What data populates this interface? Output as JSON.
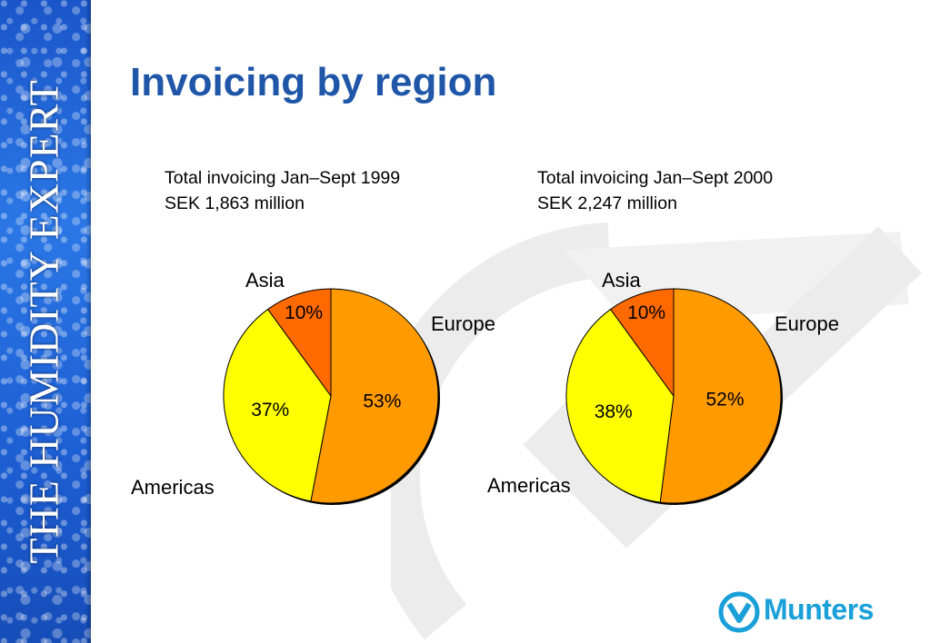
{
  "sidebar": {
    "brand_text": "THE HUMIDITY EXPERT"
  },
  "slide": {
    "title": "Invoicing by region"
  },
  "logo": {
    "text": "Munters",
    "color": "#1aa0d8"
  },
  "colors": {
    "title": "#1f56a7",
    "europe": "#ff9a00",
    "americas": "#ffff00",
    "asia": "#ff6a00"
  },
  "chart_data": [
    {
      "type": "pie",
      "title_line1": "Total invoicing Jan–Sept 1999",
      "title_line2": "SEK 1,863 million",
      "slices": [
        {
          "label": "Europe",
          "value": 53,
          "value_label": "53%",
          "color": "#ff9a00"
        },
        {
          "label": "Americas",
          "value": 37,
          "value_label": "37%",
          "color": "#ffff00"
        },
        {
          "label": "Asia",
          "value": 10,
          "value_label": "10%",
          "color": "#ff6a00"
        }
      ]
    },
    {
      "type": "pie",
      "title_line1": "Total invoicing Jan–Sept 2000",
      "title_line2": "SEK 2,247 million",
      "slices": [
        {
          "label": "Europe",
          "value": 52,
          "value_label": "52%",
          "color": "#ff9a00"
        },
        {
          "label": "Americas",
          "value": 38,
          "value_label": "38%",
          "color": "#ffff00"
        },
        {
          "label": "Asia",
          "value": 10,
          "value_label": "10%",
          "color": "#ff6a00"
        }
      ]
    }
  ]
}
